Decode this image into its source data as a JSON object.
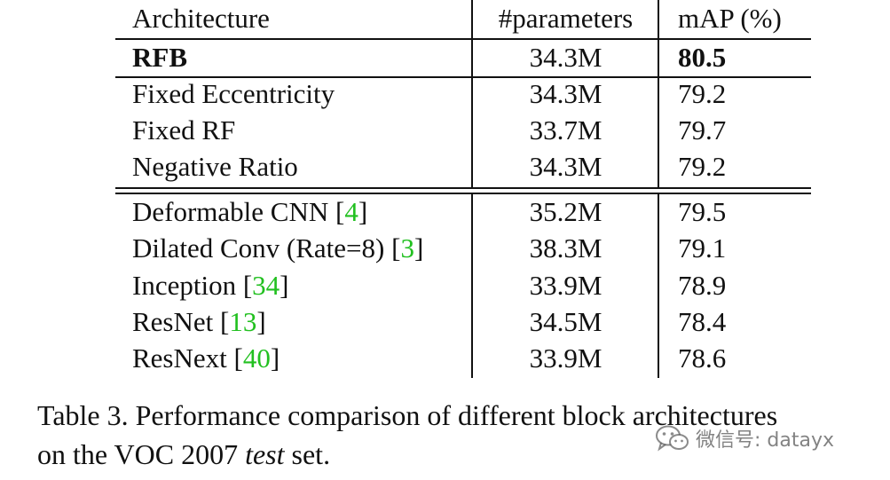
{
  "table": {
    "headers": [
      "Architecture",
      "#parameters",
      "mAP (%)"
    ],
    "rows": [
      {
        "arch": "RFB",
        "ref": "",
        "params": "34.3M",
        "map": "80.5",
        "bold": true
      },
      {
        "arch": "Fixed Eccentricity",
        "ref": "",
        "params": "34.3M",
        "map": "79.2"
      },
      {
        "arch": "Fixed RF",
        "ref": "",
        "params": "33.7M",
        "map": "79.7"
      },
      {
        "arch": "Negative Ratio",
        "ref": "",
        "params": "34.3M",
        "map": "79.2"
      },
      {
        "arch": "Deformable CNN",
        "ref": "4",
        "params": "35.2M",
        "map": "79.5"
      },
      {
        "arch": "Dilated Conv (Rate=8)",
        "ref": "3",
        "params": "38.3M",
        "map": "79.1"
      },
      {
        "arch": "Inception",
        "ref": "34",
        "params": "33.9M",
        "map": "78.9"
      },
      {
        "arch": "ResNet",
        "ref": "13",
        "params": "34.5M",
        "map": "78.4"
      },
      {
        "arch": "ResNext",
        "ref": "40",
        "params": "33.9M",
        "map": "78.6"
      }
    ]
  },
  "caption": {
    "line1": "Table 3. Performance comparison of different block architectures",
    "line2_prefix": "on the VOC 2007 ",
    "line2_italic": "test",
    "line2_suffix": " set."
  },
  "watermark": {
    "text": "微信号: datayx",
    "icon": "wechat-icon"
  },
  "colors": {
    "reference_link": "#22c020",
    "text": "#111111"
  }
}
